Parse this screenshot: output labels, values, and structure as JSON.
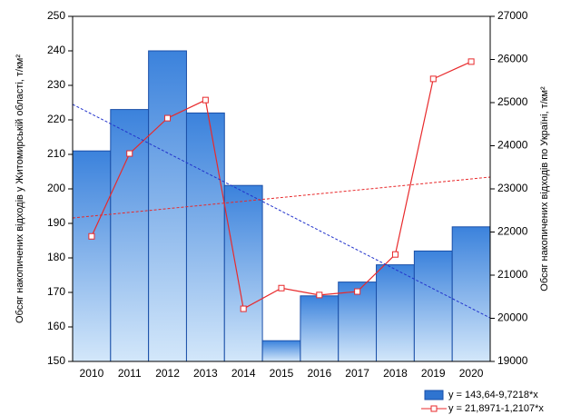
{
  "chart_data": {
    "type": "bar_line",
    "y_label": "Обсяг накопичених відходів у Житомирській області, т/км²",
    "y2_label": "Обсяг накопичених відходів по Україні, т/км²",
    "categories": [
      "2010",
      "2011",
      "2012",
      "2013",
      "2014",
      "2015",
      "2016",
      "2017",
      "2018",
      "2019",
      "2020"
    ],
    "series": [
      {
        "name": "y = 143,64-9,7218*x",
        "type": "bar",
        "color": "#2f74d0",
        "axis": "y",
        "values": [
          211,
          223,
          240,
          222,
          201,
          156,
          169,
          173,
          178,
          182,
          189
        ],
        "trend": [
          224.5,
          162.6
        ]
      },
      {
        "name": "y = 21,8971-1,2107*x",
        "type": "line",
        "color": "#e8292b",
        "axis": "y2",
        "values": [
          21900,
          23820,
          24640,
          25060,
          20220,
          20700,
          20540,
          20620,
          21480,
          25550,
          25950
        ],
        "trend": [
          22326,
          23274
        ]
      }
    ],
    "ylim": [
      150,
      250
    ],
    "yticks": [
      150,
      160,
      170,
      180,
      190,
      200,
      210,
      220,
      230,
      240,
      250
    ],
    "y2lim": [
      19000,
      27000
    ],
    "y2ticks": [
      19000,
      20000,
      21000,
      22000,
      23000,
      24000,
      25000,
      26000,
      27000
    ],
    "legend": "bottom-right"
  }
}
